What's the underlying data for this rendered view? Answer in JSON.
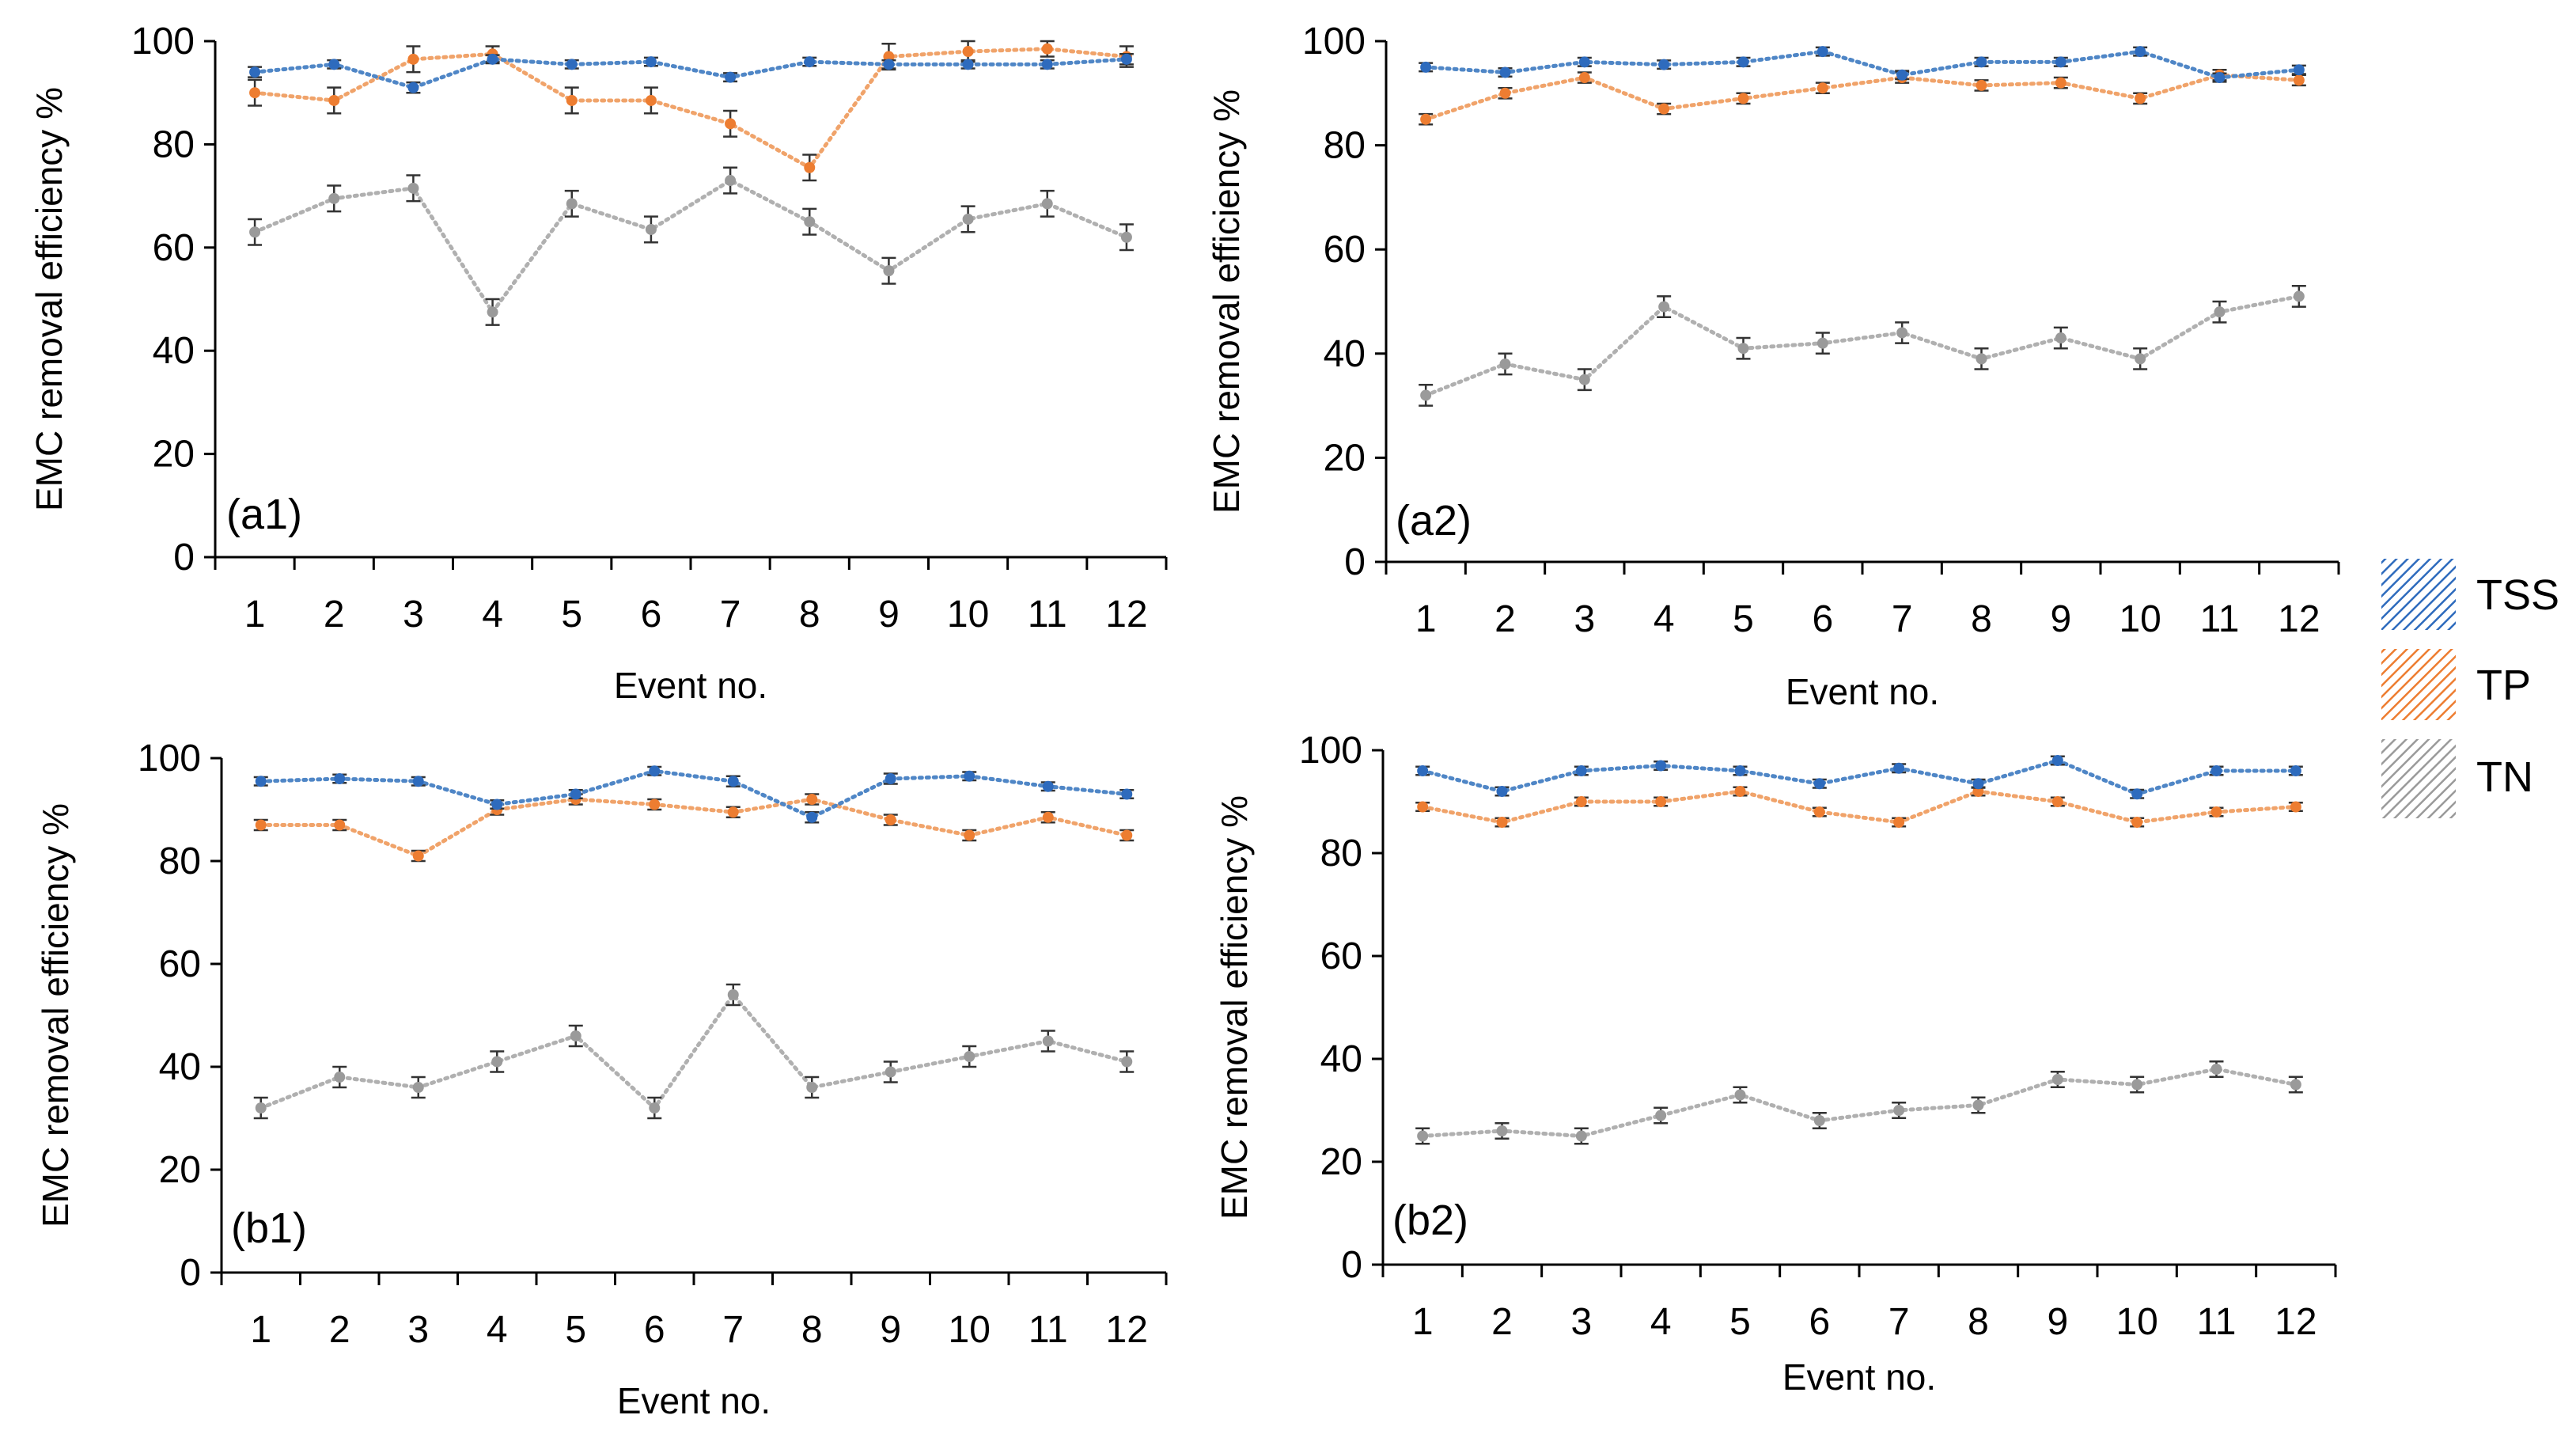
{
  "legend": {
    "items": [
      {
        "key": "TSS",
        "label": "TSS",
        "color": "#4f86c6",
        "dark": "#2e6bbd"
      },
      {
        "key": "TP",
        "label": "TP",
        "color": "#f0a36a",
        "dark": "#ed7d31"
      },
      {
        "key": "TN",
        "label": "TN",
        "color": "#b0b0b0",
        "dark": "#9a9a9a"
      }
    ]
  },
  "chart_data": [
    {
      "panel": "(a1)",
      "type": "line",
      "categories": [
        "1",
        "2",
        "3",
        "4",
        "5",
        "6",
        "7",
        "8",
        "9",
        "10",
        "11",
        "12"
      ],
      "xlabel": "Event no.",
      "ylabel": "EMC removal efficiency %",
      "ylim": [
        0,
        100
      ],
      "yticks": [
        "0",
        "20",
        "40",
        "60",
        "80",
        "100"
      ],
      "series": [
        {
          "name": "TSS",
          "values": [
            94,
            95.5,
            91,
            96.5,
            95.5,
            96,
            93,
            96,
            95.5,
            95.5,
            95.5,
            96.5
          ],
          "errors": [
            1,
            0.8,
            1,
            0.8,
            0.8,
            0.8,
            0.8,
            0.8,
            0.8,
            0.8,
            0.8,
            1
          ]
        },
        {
          "name": "TP",
          "values": [
            90,
            88.5,
            96.5,
            97.5,
            88.5,
            88.5,
            84,
            75.5,
            97,
            98,
            98.5,
            97
          ],
          "errors": [
            2.5,
            2.5,
            2.5,
            1.5,
            2.5,
            2.5,
            2.5,
            2.5,
            2.5,
            2,
            1.5,
            2
          ]
        },
        {
          "name": "TN",
          "values": [
            63,
            69.5,
            71.5,
            47.5,
            68.5,
            63.5,
            73,
            65,
            55.5,
            65.5,
            68.5,
            62
          ],
          "errors": [
            2.5,
            2.5,
            2.5,
            2.5,
            2.5,
            2.5,
            2.5,
            2.5,
            2.5,
            2.5,
            2.5,
            2.5
          ]
        }
      ]
    },
    {
      "panel": "(a2)",
      "type": "line",
      "categories": [
        "1",
        "2",
        "3",
        "4",
        "5",
        "6",
        "7",
        "8",
        "9",
        "10",
        "11",
        "12"
      ],
      "xlabel": "Event no.",
      "ylabel": "EMC removal efficiency %",
      "ylim": [
        0,
        100
      ],
      "yticks": [
        "0",
        "20",
        "40",
        "60",
        "80",
        "100"
      ],
      "series": [
        {
          "name": "TSS",
          "values": [
            95,
            94,
            96,
            95.5,
            96,
            98,
            93.5,
            96,
            96,
            98,
            93,
            94.5
          ],
          "errors": [
            0.8,
            0.8,
            0.8,
            0.8,
            0.8,
            0.8,
            0.8,
            0.8,
            0.8,
            0.8,
            0.8,
            0.8
          ]
        },
        {
          "name": "TP",
          "values": [
            85,
            90,
            93,
            87,
            89,
            91,
            93,
            91.5,
            92,
            89,
            93.5,
            92.5
          ],
          "errors": [
            1,
            1,
            1,
            1,
            1,
            1,
            1,
            1,
            1,
            1,
            1,
            1
          ]
        },
        {
          "name": "TN",
          "values": [
            32,
            38,
            35,
            49,
            41,
            42,
            44,
            39,
            43,
            39,
            48,
            51
          ],
          "errors": [
            2,
            2,
            2,
            2,
            2,
            2,
            2,
            2,
            2,
            2,
            2,
            2
          ]
        }
      ]
    },
    {
      "panel": "(b1)",
      "type": "line",
      "categories": [
        "1",
        "2",
        "3",
        "4",
        "5",
        "6",
        "7",
        "8",
        "9",
        "10",
        "11",
        "12"
      ],
      "xlabel": "Event no.",
      "ylabel": "EMC removal efficiency %",
      "ylim": [
        0,
        100
      ],
      "yticks": [
        "0",
        "20",
        "40",
        "60",
        "80",
        "100"
      ],
      "series": [
        {
          "name": "TSS",
          "values": [
            95.5,
            96,
            95.5,
            91,
            93,
            97.5,
            95.5,
            88.5,
            96,
            96.5,
            94.5,
            93
          ],
          "errors": [
            0.8,
            0.8,
            0.8,
            0.8,
            0.8,
            0.8,
            1,
            1,
            1,
            0.8,
            0.8,
            0.8
          ]
        },
        {
          "name": "TP",
          "values": [
            87,
            87,
            81,
            90,
            92,
            91,
            89.5,
            92,
            88,
            85,
            88.5,
            85
          ],
          "errors": [
            1,
            1,
            1,
            1,
            1,
            1,
            1,
            1,
            1,
            1,
            1,
            1
          ]
        },
        {
          "name": "TN",
          "values": [
            32,
            38,
            36,
            41,
            46,
            32,
            54,
            36,
            39,
            42,
            45,
            41
          ],
          "errors": [
            2,
            2,
            2,
            2,
            2,
            2,
            2,
            2,
            2,
            2,
            2,
            2
          ]
        }
      ]
    },
    {
      "panel": "(b2)",
      "type": "line",
      "categories": [
        "1",
        "2",
        "3",
        "4",
        "5",
        "6",
        "7",
        "8",
        "9",
        "10",
        "11",
        "12"
      ],
      "xlabel": "Event no.",
      "ylabel": "EMC removal efficiency %",
      "ylim": [
        0,
        100
      ],
      "yticks": [
        "0",
        "20",
        "40",
        "60",
        "80",
        "100"
      ],
      "series": [
        {
          "name": "TSS",
          "values": [
            96,
            92,
            96,
            97,
            96,
            93.5,
            96.5,
            93.5,
            98,
            91.5,
            96,
            96
          ],
          "errors": [
            0.8,
            0.8,
            0.8,
            0.8,
            0.8,
            0.8,
            0.8,
            0.8,
            0.8,
            0.8,
            0.8,
            0.8
          ]
        },
        {
          "name": "TP",
          "values": [
            89,
            86,
            90,
            90,
            92,
            88,
            86,
            92,
            90,
            86,
            88,
            89
          ],
          "errors": [
            0.8,
            0.8,
            0.8,
            0.8,
            0.8,
            0.8,
            0.8,
            0.8,
            0.8,
            0.8,
            0.8,
            0.8
          ]
        },
        {
          "name": "TN",
          "values": [
            25,
            26,
            25,
            29,
            33,
            28,
            30,
            31,
            36,
            35,
            38,
            35
          ],
          "errors": [
            1.5,
            1.5,
            1.5,
            1.5,
            1.5,
            1.5,
            1.5,
            1.5,
            1.5,
            1.5,
            1.5,
            1.5
          ]
        }
      ]
    }
  ]
}
